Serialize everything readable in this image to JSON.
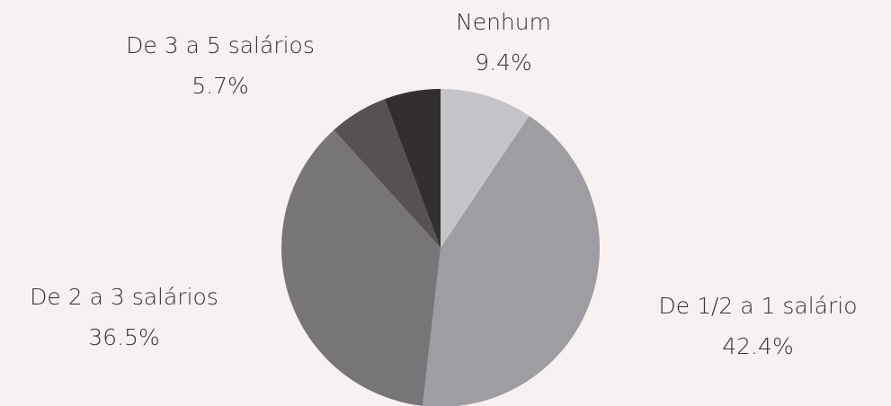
{
  "chart_data": {
    "type": "pie",
    "categories": [
      "Nenhum",
      "De 1/2 a 1 salário",
      "De 2 a 3 salários",
      null,
      "De 3 a 5 salários"
    ],
    "values": [
      9.4,
      42.4,
      36.5,
      6.0,
      5.7
    ],
    "value_labels": [
      "9.4%",
      "42.4%",
      "36.5%",
      null,
      "5.7%"
    ],
    "colors": [
      "#c4c4c8",
      "#9e9da1",
      "#777577",
      "#575152",
      "#332e2f"
    ]
  }
}
